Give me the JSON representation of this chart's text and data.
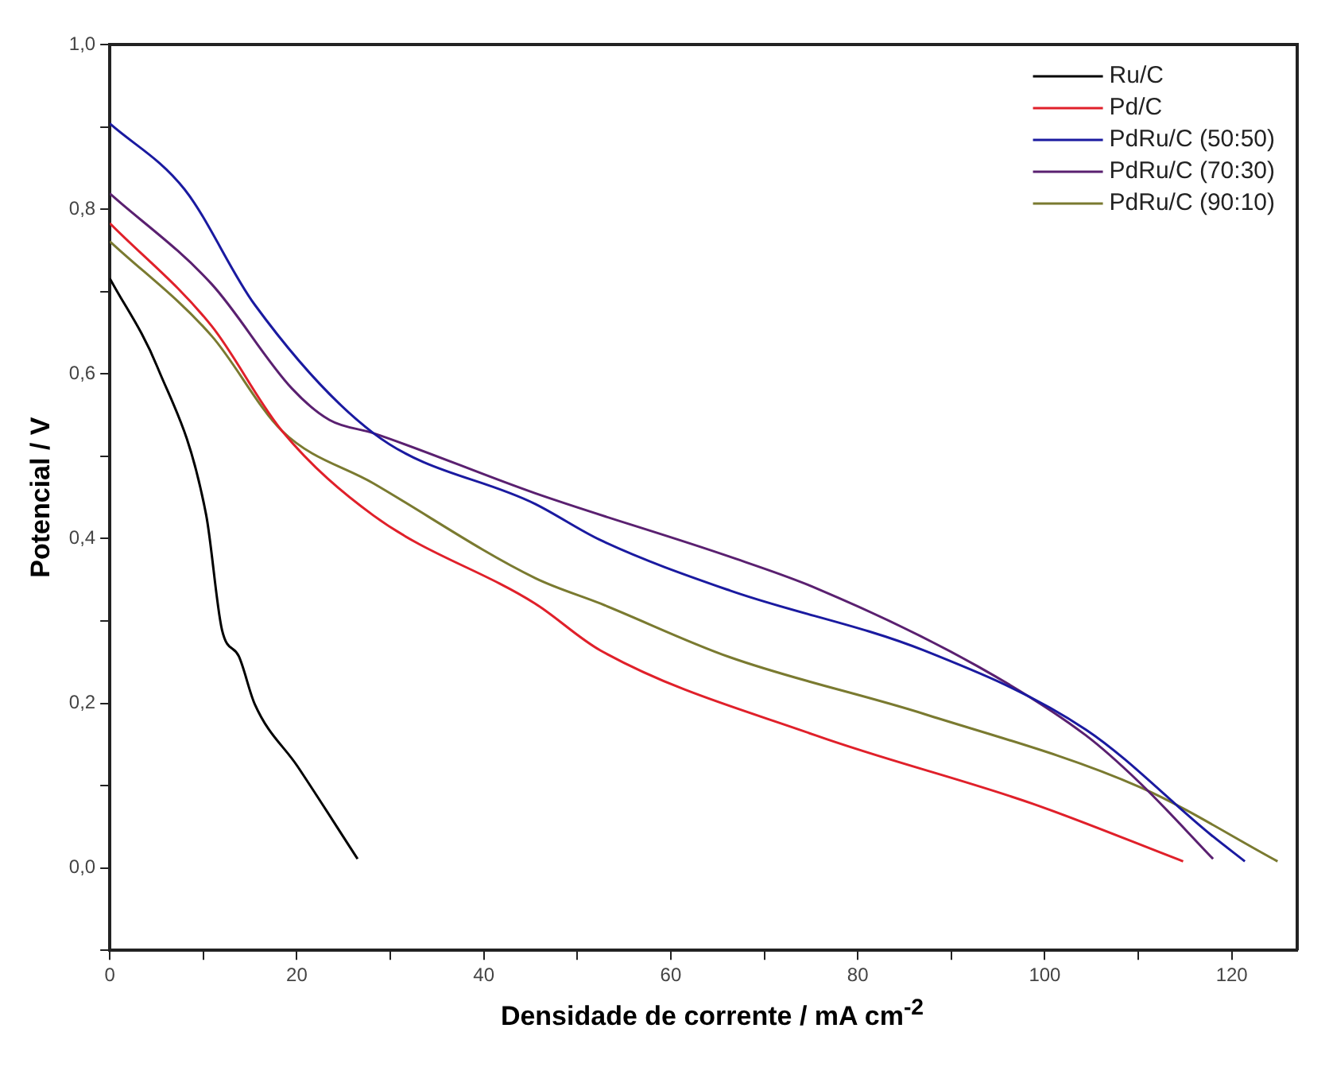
{
  "chart_data": {
    "type": "line",
    "xlabel": "Densidade de corrente / mA cm$^{-2}$",
    "ylabel": "Potencial / V",
    "xlim": [
      0,
      127
    ],
    "ylim": [
      -0.1,
      1.0
    ],
    "xticks": [
      0,
      {
        "value": 10,
        "label": null
      },
      20,
      {
        "value": 30,
        "label": null
      },
      40,
      {
        "value": 50,
        "label": null
      },
      60,
      {
        "value": 70,
        "label": null
      },
      80,
      {
        "value": 90,
        "label": null
      },
      100,
      {
        "value": 110,
        "label": null
      },
      120
    ],
    "yticks": [
      {
        "value": -0.1,
        "label": null
      },
      {
        "value": 0,
        "label": "0,0"
      },
      {
        "value": 0.1,
        "label": null
      },
      {
        "value": 0.2,
        "label": "0,2"
      },
      {
        "value": 0.3,
        "label": null
      },
      {
        "value": 0.4,
        "label": "0,4"
      },
      {
        "value": 0.5,
        "label": null
      },
      {
        "value": 0.6,
        "label": "0,6"
      },
      {
        "value": 0.7,
        "label": null
      },
      {
        "value": 0.8,
        "label": "0,8"
      },
      {
        "value": 0.9,
        "label": null
      },
      {
        "value": 1.0,
        "label": "1,0"
      }
    ],
    "grid": false,
    "legend": "top right",
    "marker": "none",
    "line_style": "solid",
    "series": [
      {
        "name": "Ru/C",
        "color": "#000000",
        "x": [
          0,
          5.1,
          10.3,
          12.0,
          13.8,
          15.5,
          20.1,
          26.5
        ],
        "values": [
          0.716,
          0.608,
          0.429,
          0.289,
          0.257,
          0.199,
          0.123,
          0.011
        ]
      },
      {
        "name": "Pd/C",
        "color": "#e0202a",
        "x": [
          0,
          10.9,
          18.4,
          28.2,
          45.5,
          52.5,
          75.5,
          98.7,
          114.8
        ],
        "values": [
          0.783,
          0.658,
          0.531,
          0.428,
          0.321,
          0.264,
          0.161,
          0.078,
          0.008
        ]
      },
      {
        "name": "PdRu/C (50:50)",
        "color": "#1a1aa0",
        "x": [
          0,
          8.0,
          15.5,
          28.2,
          45.5,
          52.5,
          66.3,
          87.1,
          104.4,
          117.8,
          121.4
        ],
        "values": [
          0.904,
          0.824,
          0.684,
          0.528,
          0.442,
          0.398,
          0.337,
          0.264,
          0.168,
          0.04,
          0.008
        ]
      },
      {
        "name": "PdRu/C (70:30)",
        "color": "#5a2070",
        "x": [
          0,
          10.9,
          19.5,
          23.5,
          28.2,
          45.5,
          66.3,
          75.5,
          92.8,
          104.4,
          110.2,
          118
        ],
        "values": [
          0.819,
          0.709,
          0.582,
          0.544,
          0.528,
          0.455,
          0.378,
          0.34,
          0.245,
          0.161,
          0.103,
          0.011
        ]
      },
      {
        "name": "PdRu/C (90:10)",
        "color": "#7a7a30",
        "x": [
          0,
          10.9,
          18.4,
          28.2,
          45.5,
          52.5,
          66.3,
          87.1,
          110.2,
          124.9
        ],
        "values": [
          0.761,
          0.646,
          0.531,
          0.467,
          0.352,
          0.321,
          0.256,
          0.187,
          0.098,
          0.008
        ]
      }
    ]
  }
}
